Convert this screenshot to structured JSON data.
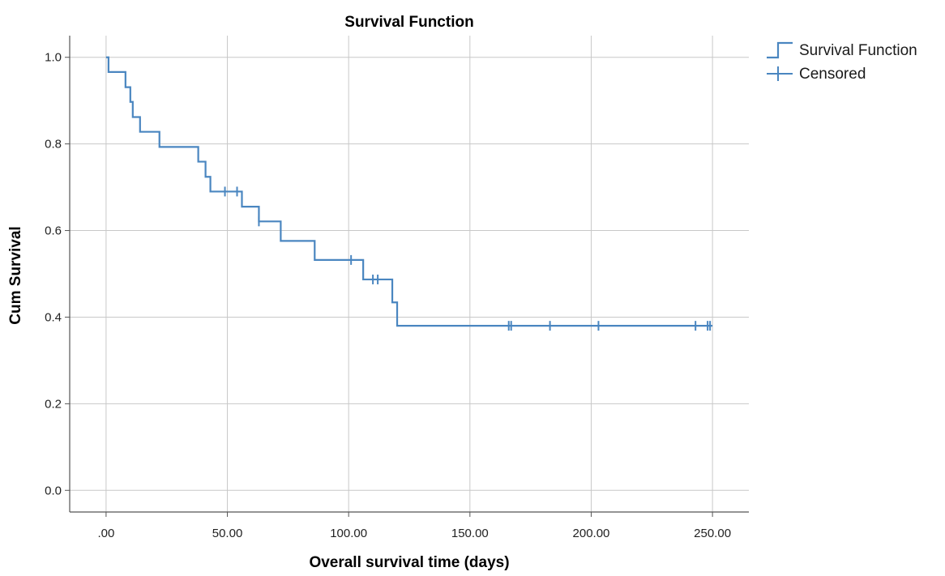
{
  "chart_data": {
    "type": "line",
    "title": "Survival Function",
    "xlabel": "Overall survival time (days)",
    "ylabel": "Cum Survival",
    "xlim": [
      -15,
      265
    ],
    "ylim": [
      -0.05,
      1.05
    ],
    "x_ticks": [
      0,
      50,
      100,
      150,
      200,
      250
    ],
    "x_tick_labels": [
      ".00",
      "50.00",
      "100.00",
      "150.00",
      "200.00",
      "250.00"
    ],
    "y_ticks": [
      0,
      0.2,
      0.4,
      0.6,
      0.8,
      1.0
    ],
    "y_tick_labels": [
      "0.0",
      "0.2",
      "0.4",
      "0.6",
      "0.8",
      "1.0"
    ],
    "grid": true,
    "legend_position": "top-right",
    "colors": {
      "series": "#4a86c0",
      "grid": "#c8c8c8",
      "axis": "#555555"
    },
    "series": [
      {
        "name": "Survival Function",
        "steps": [
          [
            0,
            1.0
          ],
          [
            1,
            0.966
          ],
          [
            8,
            0.931
          ],
          [
            10,
            0.897
          ],
          [
            11,
            0.862
          ],
          [
            14,
            0.828
          ],
          [
            22,
            0.793
          ],
          [
            38,
            0.759
          ],
          [
            41,
            0.724
          ],
          [
            43,
            0.69
          ],
          [
            56,
            0.655
          ],
          [
            63,
            0.621
          ],
          [
            72,
            0.576
          ],
          [
            86,
            0.532
          ],
          [
            106,
            0.487
          ],
          [
            118,
            0.434
          ],
          [
            120,
            0.38
          ]
        ],
        "end_x": 250
      },
      {
        "name": "Censored",
        "points": [
          [
            49,
            0.69
          ],
          [
            54,
            0.69
          ],
          [
            63,
            0.621
          ],
          [
            101,
            0.532
          ],
          [
            110,
            0.487
          ],
          [
            112,
            0.487
          ],
          [
            166,
            0.38
          ],
          [
            167,
            0.38
          ],
          [
            183,
            0.38
          ],
          [
            203,
            0.38
          ],
          [
            243,
            0.38
          ],
          [
            248,
            0.38
          ],
          [
            249,
            0.38
          ]
        ]
      }
    ],
    "legend": [
      "Survival Function",
      "Censored"
    ]
  }
}
